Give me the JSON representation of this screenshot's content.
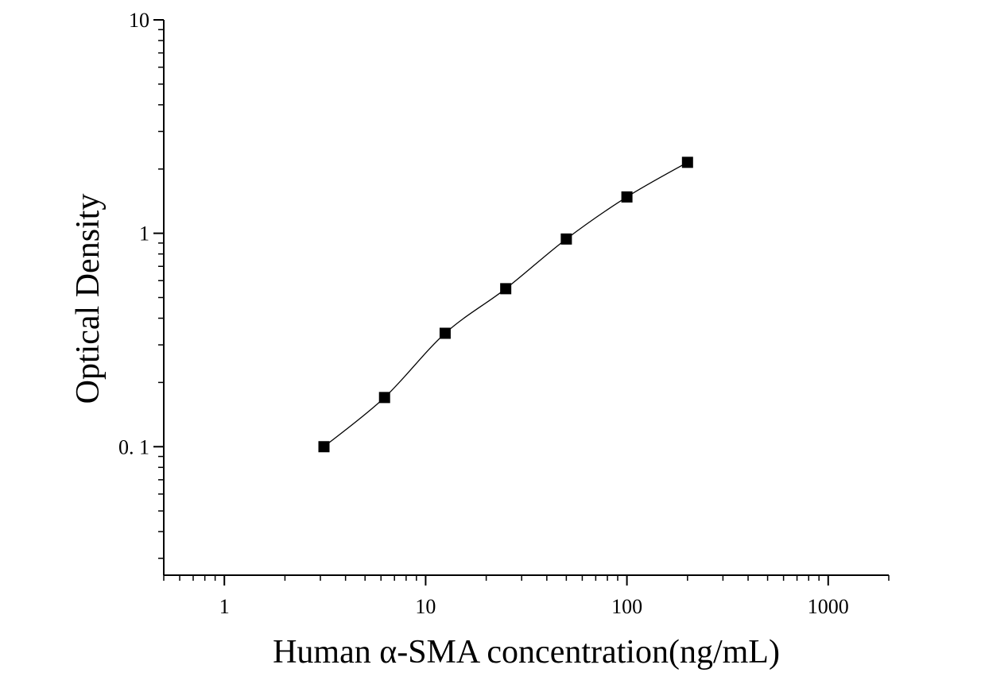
{
  "chart_data": {
    "type": "scatter",
    "title": "",
    "xlabel": "Human α-SMA concentration(ng/mL)",
    "ylabel": "Optical Density",
    "x_scale": "log",
    "y_scale": "log",
    "xlim": [
      0.5,
      2000
    ],
    "ylim": [
      0.025,
      10
    ],
    "x_ticks": [
      {
        "value": 1,
        "label": "1"
      },
      {
        "value": 10,
        "label": "10"
      },
      {
        "value": 100,
        "label": "100"
      },
      {
        "value": 1000,
        "label": "1000"
      }
    ],
    "y_ticks": [
      {
        "value": 0.1,
        "label": "0. 1"
      },
      {
        "value": 1,
        "label": "1"
      },
      {
        "value": 10,
        "label": "10"
      }
    ],
    "grid": false,
    "legend": "none",
    "marker_color": "#000000",
    "line_color": "#000000",
    "series": [
      {
        "x": [
          3.125,
          6.25,
          12.5,
          25,
          50,
          100,
          200
        ],
        "y": [
          0.1,
          0.17,
          0.34,
          0.55,
          0.94,
          1.48,
          2.15
        ],
        "marker": "square",
        "fit_line": true
      }
    ]
  }
}
